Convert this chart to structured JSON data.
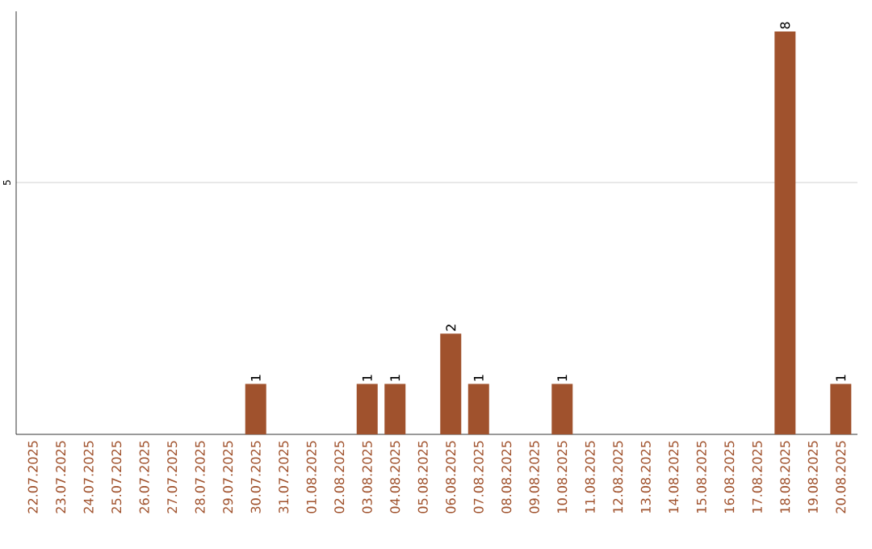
{
  "chart_data": {
    "type": "bar",
    "categories": [
      "22.07.2025",
      "23.07.2025",
      "24.07.2025",
      "25.07.2025",
      "26.07.2025",
      "27.07.2025",
      "28.07.2025",
      "29.07.2025",
      "30.07.2025",
      "31.07.2025",
      "01.08.2025",
      "02.08.2025",
      "03.08.2025",
      "04.08.2025",
      "05.08.2025",
      "06.08.2025",
      "07.08.2025",
      "08.08.2025",
      "09.08.2025",
      "10.08.2025",
      "11.08.2025",
      "12.08.2025",
      "13.08.2025",
      "14.08.2025",
      "15.08.2025",
      "16.08.2025",
      "17.08.2025",
      "18.08.2025",
      "19.08.2025",
      "20.08.2025"
    ],
    "values": [
      0,
      0,
      0,
      0,
      0,
      0,
      0,
      0,
      1,
      0,
      0,
      0,
      1,
      1,
      0,
      2,
      1,
      0,
      0,
      1,
      0,
      0,
      0,
      0,
      0,
      0,
      0,
      8,
      0,
      1
    ],
    "color": "#a0522d",
    "value_labels": [
      null,
      null,
      null,
      null,
      null,
      null,
      null,
      null,
      "1",
      null,
      null,
      null,
      "1",
      "1",
      null,
      "2",
      "1",
      null,
      null,
      "1",
      null,
      null,
      null,
      null,
      null,
      null,
      null,
      "8",
      null,
      "1"
    ],
    "ylim": [
      0,
      8.4
    ],
    "yticks": [
      5
    ],
    "grid": "y"
  }
}
